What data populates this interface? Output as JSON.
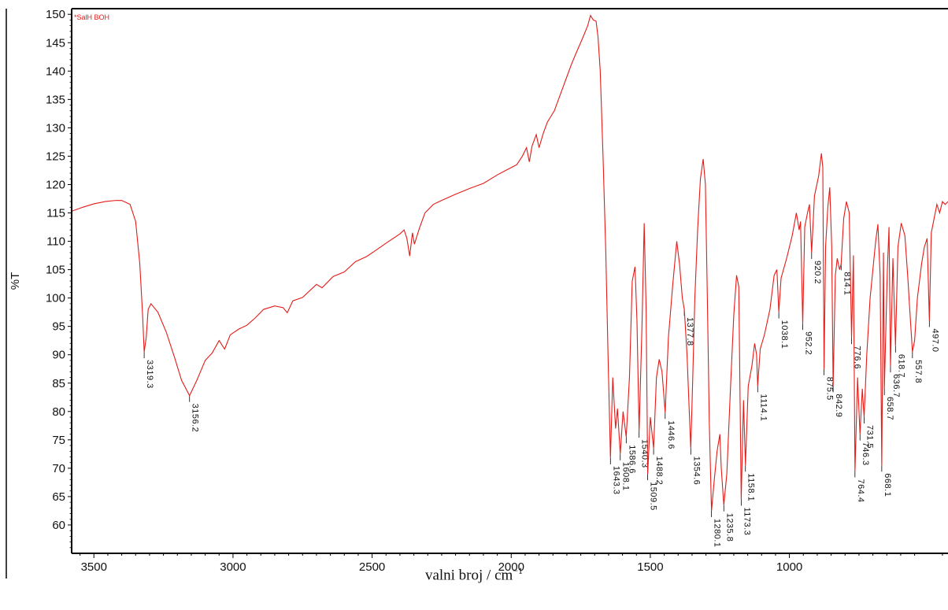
{
  "chart_data": {
    "type": "line",
    "title": "",
    "xlabel_main": "valni broj / cm",
    "xlabel_sup": "−1",
    "ylabel": "%T",
    "xlim": [
      3580,
      430
    ],
    "ylim": [
      55,
      151
    ],
    "x_reversed": true,
    "grid": false,
    "x_ticks": [
      3500,
      3000,
      2500,
      2000,
      1500,
      1000
    ],
    "y_ticks": [
      60,
      65,
      70,
      75,
      80,
      85,
      90,
      95,
      100,
      105,
      110,
      115,
      120,
      125,
      130,
      135,
      140,
      145,
      150
    ],
    "series": [
      {
        "name": "*SalH BOH",
        "color": "#e41b17",
        "points": [
          [
            3580,
            115.3
          ],
          [
            3540,
            116.0
          ],
          [
            3500,
            116.6
          ],
          [
            3460,
            117.0
          ],
          [
            3420,
            117.2
          ],
          [
            3400,
            117.2
          ],
          [
            3370,
            116.5
          ],
          [
            3350,
            113.5
          ],
          [
            3335,
            106.0
          ],
          [
            3325,
            97.0
          ],
          [
            3319.3,
            90.5
          ],
          [
            3312,
            93.0
          ],
          [
            3305,
            98.0
          ],
          [
            3295,
            99.0
          ],
          [
            3270,
            97.5
          ],
          [
            3240,
            94.0
          ],
          [
            3210,
            89.5
          ],
          [
            3185,
            85.5
          ],
          [
            3156.2,
            82.8
          ],
          [
            3130,
            85.5
          ],
          [
            3100,
            89.0
          ],
          [
            3075,
            90.3
          ],
          [
            3050,
            92.5
          ],
          [
            3030,
            91.0
          ],
          [
            3010,
            93.5
          ],
          [
            2980,
            94.5
          ],
          [
            2950,
            95.2
          ],
          [
            2920,
            96.5
          ],
          [
            2890,
            98.0
          ],
          [
            2850,
            98.6
          ],
          [
            2820,
            98.3
          ],
          [
            2805,
            97.4
          ],
          [
            2785,
            99.5
          ],
          [
            2750,
            100.1
          ],
          [
            2700,
            102.4
          ],
          [
            2680,
            101.8
          ],
          [
            2640,
            103.8
          ],
          [
            2600,
            104.6
          ],
          [
            2560,
            106.4
          ],
          [
            2520,
            107.3
          ],
          [
            2490,
            108.3
          ],
          [
            2440,
            110.0
          ],
          [
            2400,
            111.3
          ],
          [
            2385,
            112.0
          ],
          [
            2375,
            110.5
          ],
          [
            2365,
            107.4
          ],
          [
            2355,
            111.5
          ],
          [
            2348,
            109.5
          ],
          [
            2330,
            112.3
          ],
          [
            2310,
            115.0
          ],
          [
            2280,
            116.5
          ],
          [
            2250,
            117.2
          ],
          [
            2200,
            118.3
          ],
          [
            2150,
            119.3
          ],
          [
            2100,
            120.2
          ],
          [
            2050,
            121.7
          ],
          [
            2000,
            123.0
          ],
          [
            1980,
            123.5
          ],
          [
            1960,
            125.0
          ],
          [
            1945,
            126.5
          ],
          [
            1935,
            124.0
          ],
          [
            1925,
            126.8
          ],
          [
            1910,
            128.8
          ],
          [
            1900,
            126.5
          ],
          [
            1885,
            129.0
          ],
          [
            1870,
            131.0
          ],
          [
            1860,
            131.8
          ],
          [
            1845,
            133.0
          ],
          [
            1830,
            135.0
          ],
          [
            1815,
            137.0
          ],
          [
            1800,
            139.0
          ],
          [
            1785,
            141.0
          ],
          [
            1770,
            142.8
          ],
          [
            1755,
            144.5
          ],
          [
            1740,
            146.2
          ],
          [
            1725,
            148.0
          ],
          [
            1715,
            149.8
          ],
          [
            1705,
            149.0
          ],
          [
            1695,
            148.8
          ],
          [
            1688,
            146.0
          ],
          [
            1680,
            140.0
          ],
          [
            1670,
            125.0
          ],
          [
            1660,
            108.0
          ],
          [
            1652,
            90.0
          ],
          [
            1643.3,
            71.8
          ],
          [
            1635,
            86.0
          ],
          [
            1625,
            77.0
          ],
          [
            1618,
            80.5
          ],
          [
            1608.1,
            72.5
          ],
          [
            1598,
            80.0
          ],
          [
            1586.6,
            75.5
          ],
          [
            1575,
            86.0
          ],
          [
            1565,
            103.0
          ],
          [
            1555,
            105.5
          ],
          [
            1548,
            96.0
          ],
          [
            1540.3,
            76.5
          ],
          [
            1530,
            95.0
          ],
          [
            1522,
            113.2
          ],
          [
            1515,
            98.0
          ],
          [
            1509.5,
            69.0
          ],
          [
            1500,
            79.0
          ],
          [
            1488.2,
            73.5
          ],
          [
            1478,
            86.0
          ],
          [
            1468,
            89.2
          ],
          [
            1458,
            87.0
          ],
          [
            1446.6,
            79.8
          ],
          [
            1435,
            93.0
          ],
          [
            1420,
            102.0
          ],
          [
            1405,
            110.0
          ],
          [
            1395,
            106.0
          ],
          [
            1385,
            100.0
          ],
          [
            1377.8,
            98.0
          ],
          [
            1368,
            90.0
          ],
          [
            1360,
            80.0
          ],
          [
            1354.6,
            73.5
          ],
          [
            1348,
            85.0
          ],
          [
            1340,
            100.0
          ],
          [
            1330,
            112.0
          ],
          [
            1320,
            121.0
          ],
          [
            1310,
            124.5
          ],
          [
            1302,
            120.0
          ],
          [
            1295,
            100.0
          ],
          [
            1288,
            78.0
          ],
          [
            1280.1,
            62.5
          ],
          [
            1270,
            68.0
          ],
          [
            1260,
            73.0
          ],
          [
            1250,
            76.0
          ],
          [
            1245,
            70.0
          ],
          [
            1235.8,
            63.5
          ],
          [
            1225,
            69.0
          ],
          [
            1212,
            84.0
          ],
          [
            1200,
            97.0
          ],
          [
            1190,
            104.0
          ],
          [
            1182,
            102.0
          ],
          [
            1173.3,
            64.5
          ],
          [
            1165,
            82.0
          ],
          [
            1158.1,
            70.5
          ],
          [
            1148,
            84.5
          ],
          [
            1135,
            88.0
          ],
          [
            1125,
            92.0
          ],
          [
            1118,
            90.0
          ],
          [
            1114.1,
            84.5
          ],
          [
            1105,
            91.0
          ],
          [
            1090,
            93.5
          ],
          [
            1070,
            98.0
          ],
          [
            1055,
            104.0
          ],
          [
            1045,
            105.0
          ],
          [
            1038.1,
            97.5
          ],
          [
            1030,
            103.5
          ],
          [
            1010,
            107.0
          ],
          [
            990,
            111.0
          ],
          [
            975,
            115.0
          ],
          [
            965,
            112.0
          ],
          [
            960,
            113.5
          ],
          [
            952.2,
            95.5
          ],
          [
            945,
            112.5
          ],
          [
            935,
            115.0
          ],
          [
            928,
            116.5
          ],
          [
            920.2,
            108.0
          ],
          [
            910,
            118.0
          ],
          [
            895,
            121.5
          ],
          [
            885,
            125.5
          ],
          [
            880,
            123.0
          ],
          [
            875.5,
            87.5
          ],
          [
            870,
            109.0
          ],
          [
            862,
            116.0
          ],
          [
            855,
            119.5
          ],
          [
            848,
            109.0
          ],
          [
            842.9,
            84.5
          ],
          [
            835,
            104.0
          ],
          [
            828,
            107.0
          ],
          [
            820,
            105.0
          ],
          [
            814.1,
            106.0
          ],
          [
            805,
            114.0
          ],
          [
            795,
            117.0
          ],
          [
            785,
            115.0
          ],
          [
            776.6,
            93.0
          ],
          [
            770,
            107.5
          ],
          [
            764.4,
            69.5
          ],
          [
            755,
            86.0
          ],
          [
            746.3,
            76.0
          ],
          [
            738,
            84.0
          ],
          [
            731.5,
            79.0
          ],
          [
            722,
            90.0
          ],
          [
            710,
            100.0
          ],
          [
            698,
            106.0
          ],
          [
            690,
            110.0
          ],
          [
            682,
            113.0
          ],
          [
            674,
            104.0
          ],
          [
            668.1,
            70.5
          ],
          [
            662,
            108.0
          ],
          [
            658.7,
            84.0
          ],
          [
            648,
            105.0
          ],
          [
            642,
            112.5
          ],
          [
            636.7,
            88.0
          ],
          [
            628,
            107.0
          ],
          [
            618.7,
            91.5
          ],
          [
            610,
            109.0
          ],
          [
            598,
            113.2
          ],
          [
            585,
            111.0
          ],
          [
            575,
            104.0
          ],
          [
            565,
            96.0
          ],
          [
            557.8,
            90.5
          ],
          [
            550,
            92.5
          ],
          [
            540,
            100.0
          ],
          [
            525,
            106.0
          ],
          [
            515,
            109.0
          ],
          [
            505,
            110.5
          ],
          [
            497.0,
            96.0
          ],
          [
            490,
            111.5
          ],
          [
            480,
            114.0
          ],
          [
            470,
            116.5
          ],
          [
            460,
            115.0
          ],
          [
            450,
            117.0
          ],
          [
            440,
            116.5
          ],
          [
            430,
            117.0
          ]
        ]
      }
    ],
    "annotations": [
      {
        "x": 3319.3,
        "y": 90.5,
        "text": "3319.3"
      },
      {
        "x": 3156.2,
        "y": 82.8,
        "text": "3156.2"
      },
      {
        "x": 1643.3,
        "y": 71.8,
        "text": "1643.3"
      },
      {
        "x": 1608.1,
        "y": 72.5,
        "text": "1608.1"
      },
      {
        "x": 1586.6,
        "y": 75.5,
        "text": "1586.6"
      },
      {
        "x": 1540.3,
        "y": 76.5,
        "text": "1540.3"
      },
      {
        "x": 1509.5,
        "y": 69.0,
        "text": "1509.5"
      },
      {
        "x": 1488.2,
        "y": 73.5,
        "text": "1488.2"
      },
      {
        "x": 1446.6,
        "y": 79.8,
        "text": "1446.6"
      },
      {
        "x": 1377.8,
        "y": 98.0,
        "text": "1377.8"
      },
      {
        "x": 1354.6,
        "y": 73.5,
        "text": "1354.6"
      },
      {
        "x": 1280.1,
        "y": 62.5,
        "text": "1280.1"
      },
      {
        "x": 1235.8,
        "y": 63.5,
        "text": "1235.8"
      },
      {
        "x": 1173.3,
        "y": 64.5,
        "text": "1173.3"
      },
      {
        "x": 1158.1,
        "y": 70.5,
        "text": "1158.1"
      },
      {
        "x": 1114.1,
        "y": 84.5,
        "text": "1114.1"
      },
      {
        "x": 1038.1,
        "y": 97.5,
        "text": "1038.1"
      },
      {
        "x": 952.2,
        "y": 95.5,
        "text": "952.2"
      },
      {
        "x": 920.2,
        "y": 108.0,
        "text": "920.2"
      },
      {
        "x": 875.5,
        "y": 87.5,
        "text": "875.5"
      },
      {
        "x": 842.9,
        "y": 84.5,
        "text": "842.9"
      },
      {
        "x": 814.1,
        "y": 106.0,
        "text": "814.1"
      },
      {
        "x": 776.6,
        "y": 93.0,
        "text": "776.6"
      },
      {
        "x": 764.4,
        "y": 69.5,
        "text": "764.4"
      },
      {
        "x": 746.3,
        "y": 76.0,
        "text": "746.3"
      },
      {
        "x": 731.5,
        "y": 79.0,
        "text": "731.5"
      },
      {
        "x": 668.1,
        "y": 70.5,
        "text": "668.1"
      },
      {
        "x": 658.7,
        "y": 84.0,
        "text": "658.7"
      },
      {
        "x": 636.7,
        "y": 88.0,
        "text": "636.7"
      },
      {
        "x": 618.7,
        "y": 91.5,
        "text": "618.7"
      },
      {
        "x": 557.8,
        "y": 90.5,
        "text": "557.8"
      },
      {
        "x": 497.0,
        "y": 96.0,
        "text": "497.0"
      }
    ]
  }
}
